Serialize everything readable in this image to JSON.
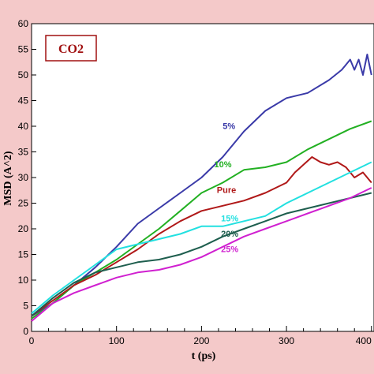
{
  "chart_data": {
    "type": "line",
    "title": "CO2",
    "xlabel": "t (ps)",
    "ylabel": "MSD (A^2)",
    "xlim": [
      0,
      400
    ],
    "ylim": [
      0,
      60
    ],
    "x_ticks": [
      0,
      100,
      200,
      300,
      400
    ],
    "y_ticks": [
      0,
      5,
      10,
      15,
      20,
      25,
      30,
      35,
      40,
      45,
      50,
      55,
      60
    ],
    "grid": false,
    "colors": {
      "background": "#f4c9c9",
      "plot_area": "#ffffff",
      "title_text": "#a01010"
    },
    "series": [
      {
        "name": "5%",
        "color": "#3a3aa8",
        "x": [
          0,
          25,
          50,
          75,
          100,
          125,
          150,
          175,
          200,
          225,
          250,
          275,
          300,
          325,
          350,
          365,
          370,
          375,
          380,
          385,
          390,
          395,
          400
        ],
        "y": [
          3,
          5.5,
          9,
          12.5,
          16.5,
          21,
          24,
          27,
          30,
          34,
          39,
          43,
          45.5,
          46.5,
          49,
          51,
          52,
          53,
          51,
          53,
          50,
          54,
          50
        ]
      },
      {
        "name": "10%",
        "color": "#22b022",
        "x": [
          0,
          25,
          50,
          75,
          100,
          125,
          150,
          175,
          200,
          225,
          250,
          275,
          300,
          325,
          350,
          375,
          400
        ],
        "y": [
          2.5,
          5.5,
          9,
          11.5,
          14,
          17,
          20,
          23.5,
          27,
          29,
          31.5,
          32,
          33,
          35.5,
          37.5,
          39.5,
          41
        ]
      },
      {
        "name": "Pure",
        "color": "#b01818",
        "x": [
          0,
          25,
          50,
          75,
          100,
          125,
          150,
          175,
          200,
          225,
          250,
          275,
          300,
          310,
          320,
          330,
          340,
          350,
          360,
          370,
          380,
          390,
          400
        ],
        "y": [
          3,
          6,
          9,
          11,
          13.5,
          16,
          19,
          21.5,
          23.5,
          24.5,
          25.5,
          27,
          29,
          31,
          32.5,
          34,
          33,
          32.5,
          33,
          32,
          30,
          31,
          29
        ]
      },
      {
        "name": "15%",
        "color": "#22e0e0",
        "x": [
          0,
          25,
          50,
          75,
          100,
          125,
          150,
          175,
          200,
          225,
          250,
          275,
          300,
          325,
          350,
          375,
          400
        ],
        "y": [
          3.5,
          7,
          10,
          13,
          16,
          17,
          18,
          19,
          20.5,
          20.5,
          21.5,
          22.5,
          25,
          27,
          29,
          31,
          33
        ]
      },
      {
        "name": "20%",
        "color": "#1e5e4e",
        "x": [
          0,
          25,
          50,
          75,
          100,
          125,
          150,
          175,
          200,
          225,
          250,
          275,
          300,
          325,
          350,
          375,
          400
        ],
        "y": [
          3,
          6.5,
          9.5,
          11.5,
          12.5,
          13.5,
          14,
          15,
          16.5,
          18.5,
          20,
          21.5,
          23,
          24,
          25,
          26,
          27
        ]
      },
      {
        "name": "25%",
        "color": "#d020d0",
        "x": [
          0,
          25,
          50,
          75,
          100,
          125,
          150,
          175,
          200,
          225,
          250,
          275,
          300,
          325,
          350,
          375,
          400
        ],
        "y": [
          2,
          5.5,
          7.5,
          9,
          10.5,
          11.5,
          12,
          13,
          14.5,
          16.5,
          18.5,
          20,
          21.5,
          23,
          24.5,
          26,
          28
        ]
      }
    ]
  }
}
